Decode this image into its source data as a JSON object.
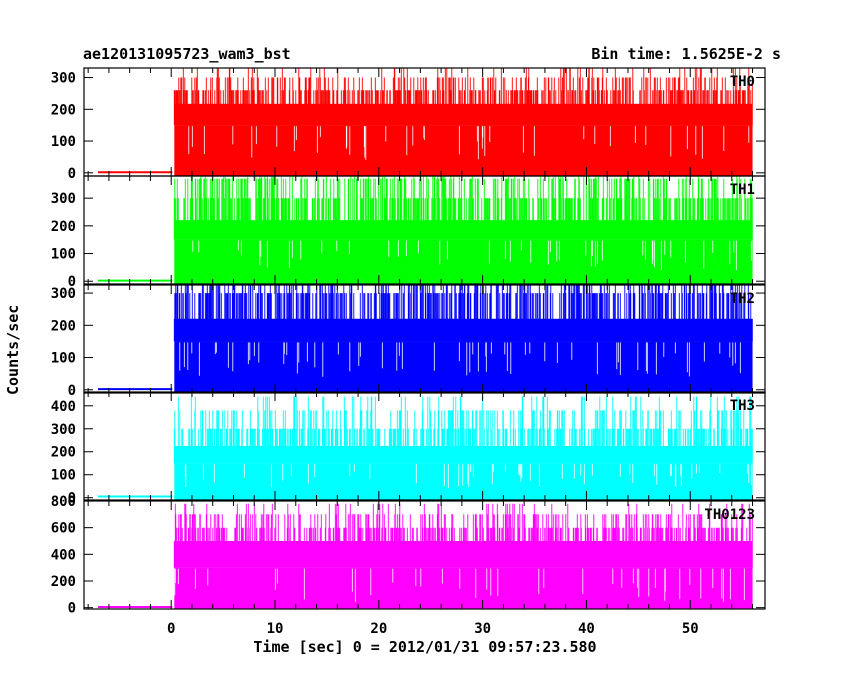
{
  "chart_data": {
    "type": "line",
    "title_left": "ae120131095723_wam3_bst",
    "title_right": "Bin time: 1.5625E-2 s",
    "xlabel": "Time [sec] 0 = 2012/01/31 09:57:23.580",
    "ylabel": "Counts/sec",
    "xlim": [
      -8.4,
      57.2
    ],
    "x_ticks": [
      0,
      10,
      20,
      30,
      40,
      50
    ],
    "burst_start": 0.3,
    "burst_end": 56.0,
    "panels": [
      {
        "name": "TH0",
        "color": "#ff0000",
        "ylim": [
          -10,
          330
        ],
        "y_ticks": [
          0,
          100,
          200,
          300
        ],
        "pre_level": 2,
        "base": 150,
        "levels": [
          217,
          260,
          300,
          330
        ],
        "floor": 40
      },
      {
        "name": "TH1",
        "color": "#00ff00",
        "ylim": [
          -10,
          380
        ],
        "y_ticks": [
          0,
          100,
          200,
          300
        ],
        "pre_level": 2,
        "base": 150,
        "levels": [
          220,
          300,
          370,
          380
        ],
        "floor": 40
      },
      {
        "name": "TH2",
        "color": "#0000ff",
        "ylim": [
          -10,
          325
        ],
        "y_ticks": [
          0,
          100,
          200,
          300
        ],
        "pre_level": 2,
        "base": 150,
        "levels": [
          220,
          300,
          325
        ],
        "floor": 40
      },
      {
        "name": "TH3",
        "color": "#00ffff",
        "ylim": [
          -10,
          460
        ],
        "y_ticks": [
          0,
          100,
          200,
          300,
          400
        ],
        "pre_level": 5,
        "base": 150,
        "levels": [
          225,
          300,
          380,
          440
        ],
        "floor": 40
      },
      {
        "name": "TH0123",
        "color": "#ff00ff",
        "ylim": [
          -10,
          800
        ],
        "y_ticks": [
          0,
          200,
          400,
          600,
          800
        ],
        "pre_level": 5,
        "base": 300,
        "levels": [
          500,
          600,
          700,
          780
        ],
        "floor": 40
      }
    ]
  }
}
